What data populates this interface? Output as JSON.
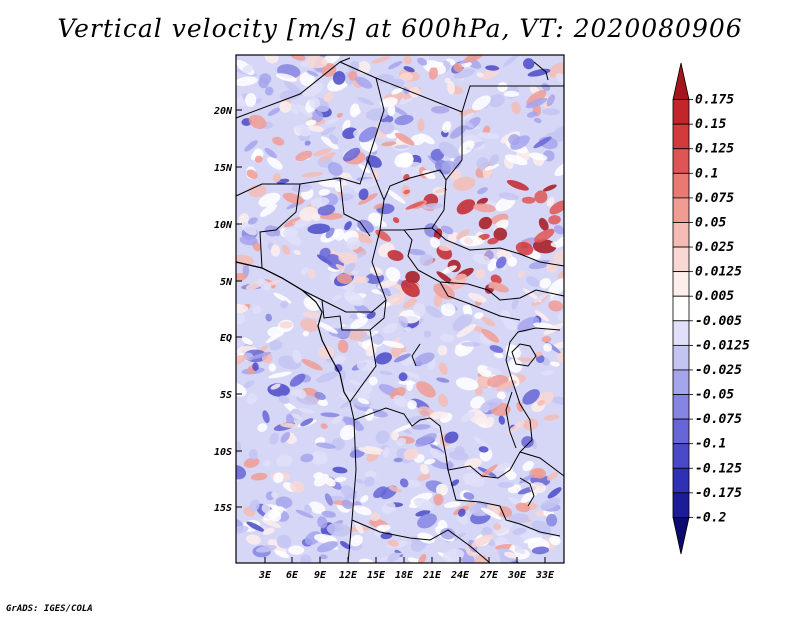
{
  "title": "Vertical velocity [m/s] at 600hPa, VT: 2020080906",
  "credit": "GrADS: IGES/COLA",
  "map": {
    "lat_labels": [
      "20N",
      "15N",
      "10N",
      "5N",
      "EQ",
      "5S",
      "10S",
      "15S"
    ],
    "lon_labels": [
      "3E",
      "6E",
      "9E",
      "12E",
      "15E",
      "18E",
      "21E",
      "24E",
      "27E",
      "30E",
      "33E"
    ]
  },
  "colorbar": {
    "levels": [
      "0.175",
      "0.15",
      "0.125",
      "0.1",
      "0.075",
      "0.05",
      "0.025",
      "0.0125",
      "0.005",
      "-0.005",
      "-0.0125",
      "-0.025",
      "-0.05",
      "-0.075",
      "-0.1",
      "-0.125",
      "-0.175",
      "-0.2"
    ],
    "colors": [
      "#a5151c",
      "#c2262b",
      "#d23a3c",
      "#de5653",
      "#e97a72",
      "#f09c93",
      "#f5bcb5",
      "#f9d8d3",
      "#fdeeec",
      "#ffffff",
      "#e0e0fa",
      "#c4c4f3",
      "#a5a5ec",
      "#8585e2",
      "#6666d6",
      "#4a4ac8",
      "#3030b4",
      "#1c1c98",
      "#0c0c70"
    ]
  }
}
